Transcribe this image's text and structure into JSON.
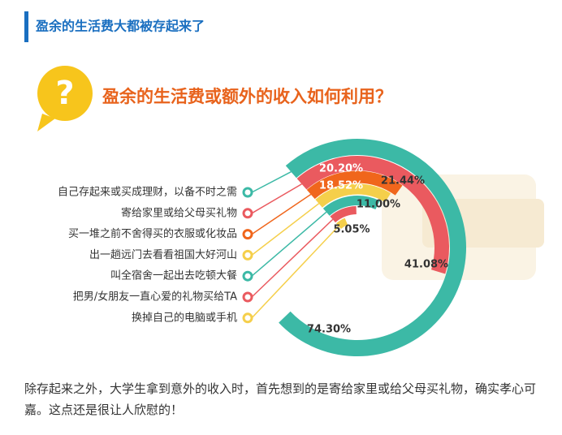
{
  "header": {
    "title": "盈余的生活费大都被存起来了"
  },
  "infographic": {
    "icon": "?",
    "title": "盈余的生活费或额外的收入如何利用？"
  },
  "chart_data": {
    "type": "radial-bar",
    "categories": [
      "自己存起来或买成理财，以备不时之需",
      "寄给家里或给父母买礼物",
      "买一堆之前不舍得买的衣服或化妆品",
      "出一趟远门去看看祖国大好河山",
      "叫全宿舍一起出去吃顿大餐",
      "把男/女朋友一直心爱的礼物买给TA",
      "换掉自己的电脑或手机"
    ],
    "values": [
      74.3,
      41.08,
      21.44,
      20.2,
      18.52,
      11.0,
      5.05
    ],
    "value_labels": [
      "74.30%",
      "41.08%",
      "21.44%",
      "20.20%",
      "18.52%",
      "11.00%",
      "5.05%"
    ],
    "colors": [
      "#3cb9a6",
      "#ea5a5f",
      "#f0661c",
      "#f5cf4b",
      "#3cb9a6",
      "#ea5a5f",
      "#f5cf4b"
    ]
  },
  "paragraph": "除存起来之外，大学生拿到意外的收入时，首先想到的是寄给家里或给父母买礼物，确实孝心可嘉。这点还是很让人欣慰的！"
}
